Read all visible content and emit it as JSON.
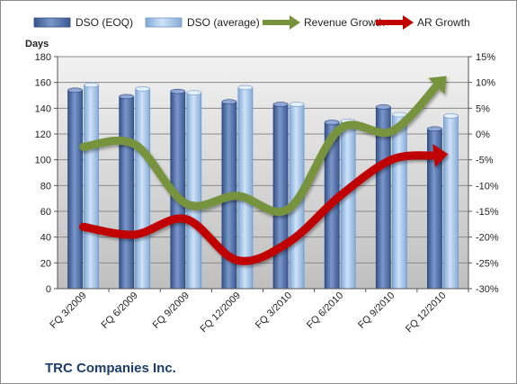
{
  "chart_data": {
    "type": "bar",
    "company": "TRC Companies Inc.",
    "ylabel_left": "Days",
    "ylim_left": [
      0,
      180
    ],
    "yticks_left": [
      "0",
      "20",
      "40",
      "60",
      "80",
      "100",
      "120",
      "140",
      "160",
      "180"
    ],
    "ylim_right": [
      -30,
      15
    ],
    "yticks_right": [
      "-30%",
      "-25%",
      "-20%",
      "-15%",
      "-10%",
      "-5%",
      "0%",
      "5%",
      "10%",
      "15%"
    ],
    "categories": [
      "FQ 3/2009",
      "FQ 6/2009",
      "FQ 9/2009",
      "FQ 12/2009",
      "FQ 3/2010",
      "FQ 6/2010",
      "FQ 9/2010",
      "FQ 12/2010"
    ],
    "series": [
      {
        "name": "DSO (EOQ)",
        "kind": "bar",
        "axis": "left",
        "values": [
          154,
          149,
          153,
          145,
          143,
          129,
          141,
          124
        ]
      },
      {
        "name": "DSO (average)",
        "kind": "bar",
        "axis": "left",
        "values": [
          158,
          155,
          152,
          156,
          143,
          130,
          135,
          134
        ]
      },
      {
        "name": "Revenue Growth",
        "kind": "line",
        "axis": "right",
        "unit": "%",
        "values": [
          -2.5,
          -2.0,
          -13.5,
          -12.0,
          -14.5,
          1.0,
          0.5,
          10.5
        ]
      },
      {
        "name": "AR Growth",
        "kind": "line",
        "axis": "right",
        "unit": "%",
        "values": [
          -18.0,
          -19.5,
          -16.5,
          -24.5,
          -21.0,
          -12.0,
          -5.0,
          -4.0
        ]
      }
    ],
    "legend_position": "top",
    "grid": true,
    "colors": {
      "bar_eoq": "#4f6fa8",
      "bar_avg": "#9fc3ea",
      "revenue": "#77933c",
      "ar": "#c00000",
      "plot_bg": "#d9d9d9"
    }
  }
}
